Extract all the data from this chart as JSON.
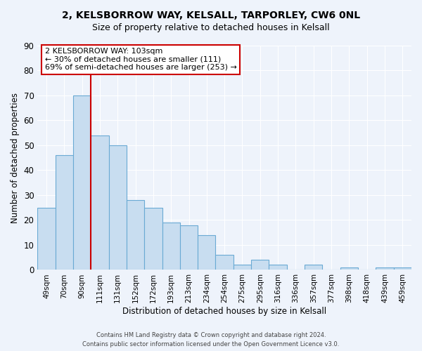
{
  "title_line1": "2, KELSBORROW WAY, KELSALL, TARPORLEY, CW6 0NL",
  "title_line2": "Size of property relative to detached houses in Kelsall",
  "xlabel": "Distribution of detached houses by size in Kelsall",
  "ylabel": "Number of detached properties",
  "bar_color": "#c8ddf0",
  "bar_edge_color": "#6aaad4",
  "annotation_box_color": "#ffffff",
  "annotation_box_edge": "#cc0000",
  "vline_color": "#cc0000",
  "categories": [
    "49sqm",
    "70sqm",
    "90sqm",
    "111sqm",
    "131sqm",
    "152sqm",
    "172sqm",
    "193sqm",
    "213sqm",
    "234sqm",
    "254sqm",
    "275sqm",
    "295sqm",
    "316sqm",
    "336sqm",
    "357sqm",
    "377sqm",
    "398sqm",
    "418sqm",
    "439sqm",
    "459sqm"
  ],
  "values": [
    25,
    46,
    70,
    54,
    50,
    28,
    25,
    19,
    18,
    14,
    6,
    2,
    4,
    2,
    0,
    2,
    0,
    1,
    0,
    1,
    1
  ],
  "ylim": [
    0,
    90
  ],
  "annotation_text_line1": "2 KELSBORROW WAY: 103sqm",
  "annotation_text_line2": "← 30% of detached houses are smaller (111)",
  "annotation_text_line3": "69% of semi-detached houses are larger (253) →",
  "footer_line1": "Contains HM Land Registry data © Crown copyright and database right 2024.",
  "footer_line2": "Contains public sector information licensed under the Open Government Licence v3.0.",
  "background_color": "#eef3fb",
  "grid_color": "#ffffff"
}
